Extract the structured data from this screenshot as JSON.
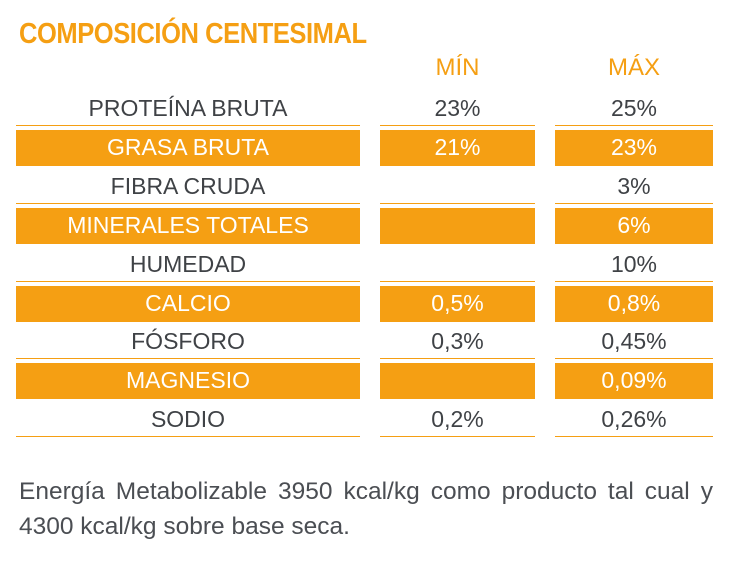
{
  "title": "COMPOSICIÓN CENTESIMAL",
  "columns": {
    "min": "MÍN",
    "max": "MÁX"
  },
  "rows": [
    {
      "name": "PROTEÍNA BRUTA",
      "min": "23%",
      "max": "25%",
      "highlighted": false
    },
    {
      "name": "GRASA BRUTA",
      "min": "21%",
      "max": "23%",
      "highlighted": true
    },
    {
      "name": "FIBRA CRUDA",
      "min": "",
      "max": "3%",
      "highlighted": false
    },
    {
      "name": "MINERALES TOTALES",
      "min": "",
      "max": "6%",
      "highlighted": true
    },
    {
      "name": "HUMEDAD",
      "min": "",
      "max": "10%",
      "highlighted": false
    },
    {
      "name": "CALCIO",
      "min": "0,5%",
      "max": "0,8%",
      "highlighted": true
    },
    {
      "name": "FÓSFORO",
      "min": "0,3%",
      "max": "0,45%",
      "highlighted": false
    },
    {
      "name": "MAGNESIO",
      "min": "",
      "max": "0,09%",
      "highlighted": true
    },
    {
      "name": "SODIO",
      "min": "0,2%",
      "max": "0,26%",
      "highlighted": false
    }
  ],
  "energy_text": "Energía Metabolizable 3950 kcal/kg como producto tal cual y 4300 kcal/kg sobre base seca.",
  "colors": {
    "accent": "#f59f13",
    "text": "#3f4246",
    "highlight_text": "#ffffff"
  }
}
